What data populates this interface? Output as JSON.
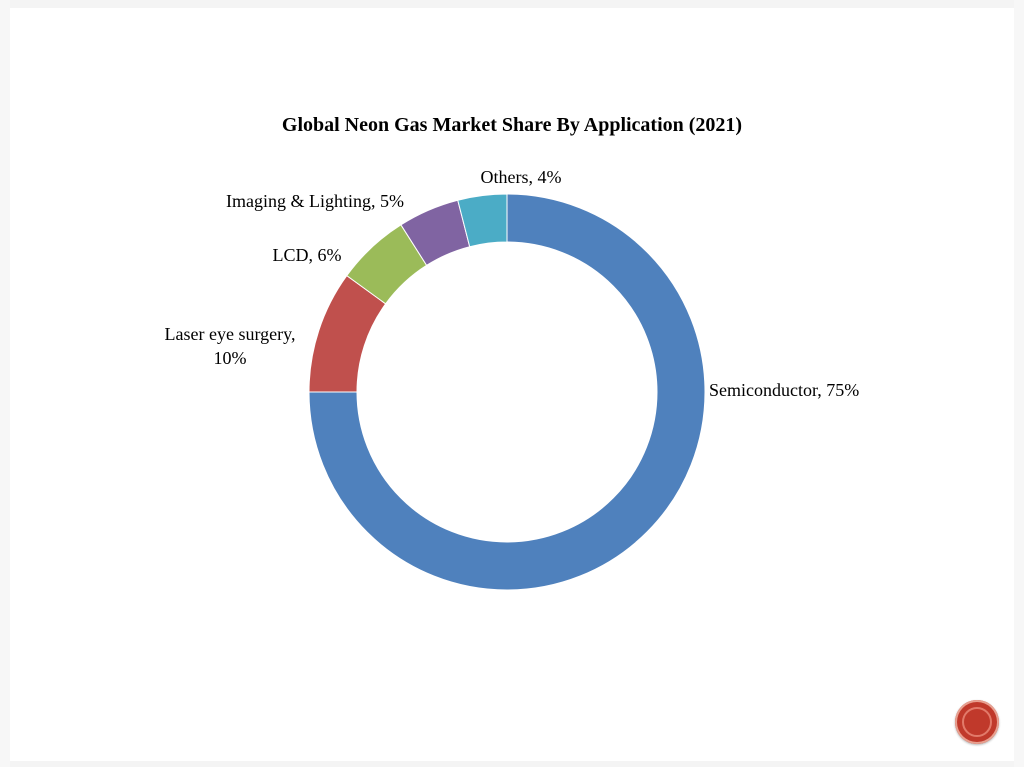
{
  "chart_data": {
    "type": "pie",
    "style": "donut",
    "title": "Global Neon Gas Market Share By Application (2021)",
    "slices": [
      {
        "label": "Semiconductor, 75%",
        "value": 75,
        "color": "#4f81bd"
      },
      {
        "label": "Laser eye surgery, 10%",
        "value": 10,
        "color": "#c0504d"
      },
      {
        "label": "LCD, 6%",
        "value": 6,
        "color": "#9bbb59"
      },
      {
        "label": "Imaging  & Lighting, 5%",
        "value": 5,
        "color": "#8064a2"
      },
      {
        "label": "Others, 4%",
        "value": 4,
        "color": "#4bacc6"
      }
    ],
    "legend": "none"
  },
  "labels": {
    "semiconductor": "Semiconductor, 75%",
    "laser_line1": "Laser eye surgery,",
    "laser_line2": "10%",
    "lcd": "LCD, 6%",
    "imaging": "Imaging  & Lighting, 5%",
    "others": "Others, 4%"
  },
  "nav": {
    "button_color": "#c0392b"
  }
}
